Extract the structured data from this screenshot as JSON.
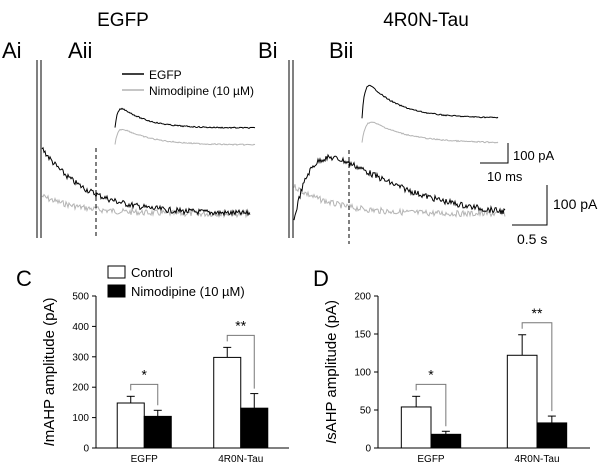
{
  "figure": {
    "panel_labels": {
      "ai": "Ai",
      "aii": "Aii",
      "bi": "Bi",
      "bii": "Bii",
      "c": "C",
      "d": "D"
    },
    "condition_titles": {
      "egfp": "EGFP",
      "tau": "4R0N-Tau"
    },
    "trace_legend": {
      "egfp": "EGFP",
      "nimodipine": "Nimodipine (10 µM)"
    },
    "scale_bars": {
      "inset_current": "100 pA",
      "inset_time": "10 ms",
      "main_current": "100 pA",
      "main_time": "0.5 s"
    },
    "colors": {
      "control": "#ffffff",
      "nimodipine": "#000000",
      "egfp_trace": "#000000",
      "nimodipine_trace": "#b4b4b4"
    }
  },
  "chart_data": [
    {
      "panel": "C",
      "type": "bar",
      "ylabel_italic": "I",
      "ylabel_rest": "mAHP amplitude (pA)",
      "categories": [
        "EGFP",
        "4R0N-Tau"
      ],
      "ylim": [
        0,
        500
      ],
      "yticks": [
        "0",
        "100",
        "200",
        "300",
        "400",
        "500"
      ],
      "series": [
        {
          "name": "Control",
          "values": [
            148,
            298
          ],
          "errors": [
            22,
            33
          ],
          "color": "#ffffff"
        },
        {
          "name": "Nimodipine (10 µM)",
          "values": [
            104,
            131
          ],
          "errors": [
            20,
            48
          ],
          "color": "#000000"
        }
      ],
      "significance": [
        "*",
        "**"
      ],
      "legend": {
        "position": "top-left",
        "entries": [
          "Control",
          "Nimodipine (10 µM)"
        ]
      }
    },
    {
      "panel": "D",
      "type": "bar",
      "ylabel_italic": "I",
      "ylabel_rest": "sAHP amplitude (pA)",
      "categories": [
        "EGFP",
        "4R0N-Tau"
      ],
      "ylim": [
        0,
        200
      ],
      "yticks": [
        "0",
        "50",
        "100",
        "150",
        "200"
      ],
      "series": [
        {
          "name": "Control",
          "values": [
            54,
            122
          ],
          "errors": [
            14,
            27
          ],
          "color": "#ffffff"
        },
        {
          "name": "Nimodipine (10 µM)",
          "values": [
            18,
            33
          ],
          "errors": [
            4,
            9
          ],
          "color": "#000000"
        }
      ],
      "significance": [
        "*",
        "**"
      ]
    }
  ]
}
